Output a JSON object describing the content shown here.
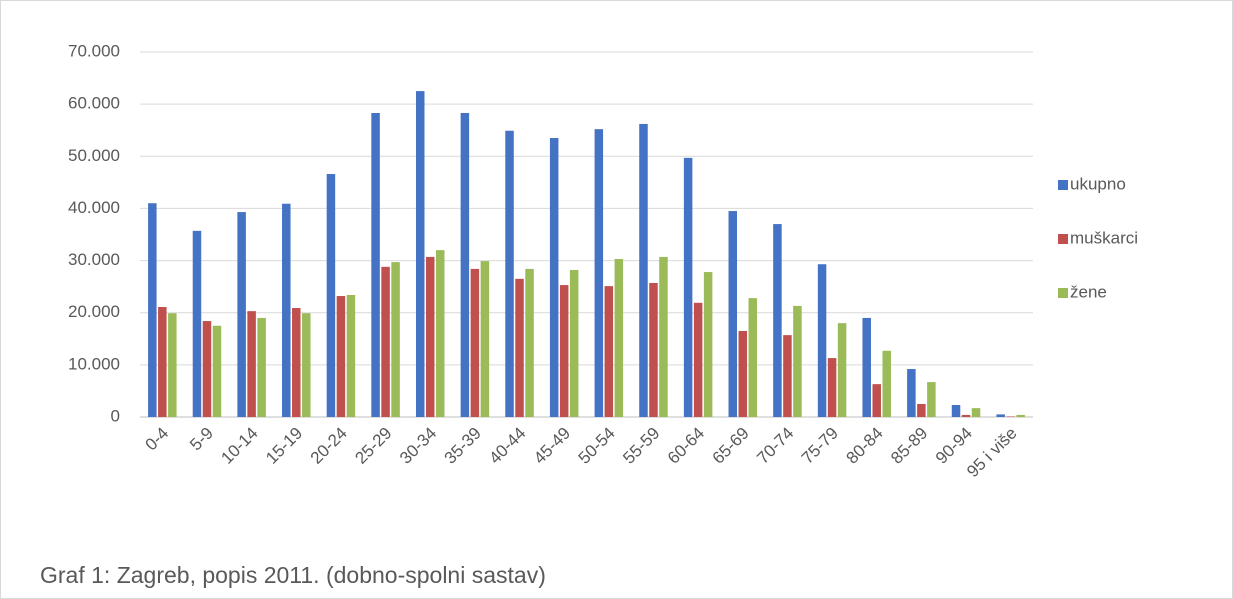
{
  "chart_data": {
    "type": "bar",
    "categories": [
      "0-4",
      "5-9",
      "10-14",
      "15-19",
      "20-24",
      "25-29",
      "30-34",
      "35-39",
      "40-44",
      "45-49",
      "50-54",
      "55-59",
      "60-64",
      "65-69",
      "70-74",
      "75-79",
      "80-84",
      "85-89",
      "90-94",
      "95 i više"
    ],
    "series": [
      {
        "name": "ukupno",
        "color": "#4472c4",
        "values": [
          41000,
          35700,
          39300,
          40900,
          46600,
          58300,
          62500,
          58300,
          54900,
          53500,
          55200,
          56200,
          49700,
          39500,
          37000,
          29300,
          19000,
          9200,
          2300,
          500
        ]
      },
      {
        "name": "muškarci",
        "color": "#c0504d",
        "values": [
          21100,
          18400,
          20300,
          20900,
          23200,
          28800,
          30700,
          28400,
          26500,
          25300,
          25100,
          25700,
          21900,
          16500,
          15700,
          11300,
          6300,
          2500,
          400,
          100
        ]
      },
      {
        "name": "žene",
        "color": "#9bbb59",
        "values": [
          19900,
          17500,
          19000,
          19900,
          23400,
          29700,
          32000,
          29900,
          28400,
          28200,
          30300,
          30700,
          27800,
          22800,
          21300,
          18000,
          12700,
          6700,
          1700,
          400
        ]
      }
    ],
    "ylim": [
      0,
      70000
    ],
    "yticks": [
      0,
      {
        "value": 10000,
        "label": "10.000"
      },
      {
        "value": 20000,
        "label": "20.000"
      },
      {
        "value": 30000,
        "label": "30.000"
      },
      {
        "value": 40000,
        "label": "40.000"
      },
      {
        "value": 50000,
        "label": "50.000"
      },
      {
        "value": 60000,
        "label": "60.000"
      },
      {
        "value": 70000,
        "label": "70.000"
      }
    ],
    "grid": true,
    "legend": "right",
    "caption": "Graf 1: Zagreb, popis 2011. (dobno-spolni sastav)"
  }
}
